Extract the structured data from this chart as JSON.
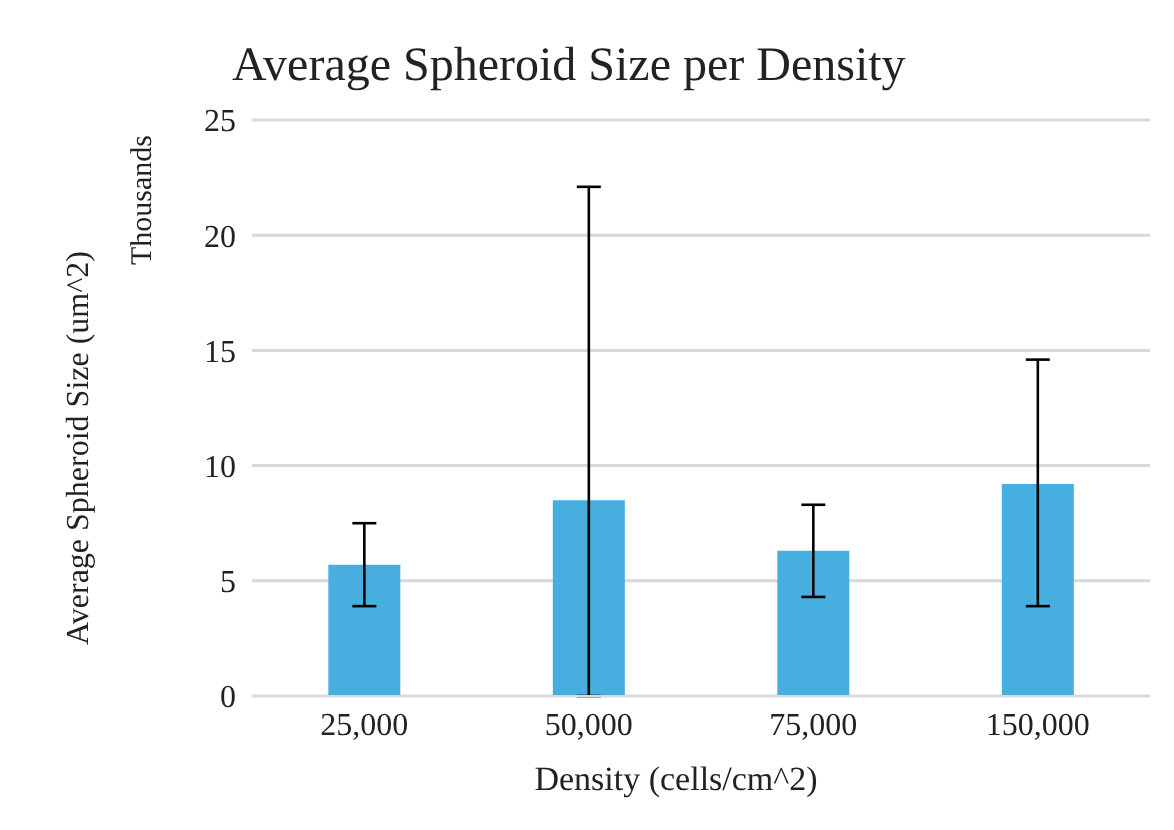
{
  "chart_data": {
    "type": "bar",
    "title": "Average Spheroid Size per Density",
    "xlabel": "Density (cells/cm^2)",
    "ylabel": "Average Spheroid Size (um^2)",
    "annotations": [
      "Thousands"
    ],
    "categories": [
      "25,000",
      "50,000",
      "75,000",
      "150,000"
    ],
    "values": [
      5.7,
      8.5,
      6.3,
      9.2
    ],
    "errors": [
      [
        3.9,
        7.5
      ],
      [
        0,
        22.1
      ],
      [
        4.3,
        8.3
      ],
      [
        3.9,
        14.6
      ]
    ],
    "color": "#47aee0",
    "ylim": [
      0,
      25
    ],
    "yticks": [
      0,
      5,
      10,
      15,
      20,
      25
    ],
    "grid": "y"
  }
}
